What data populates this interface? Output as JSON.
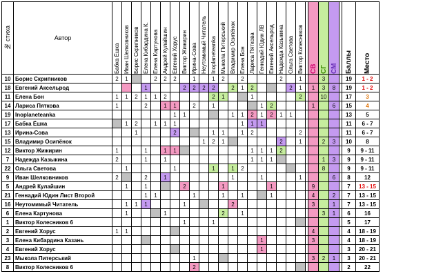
{
  "header": {
    "num_label": "№ стиха",
    "author_label": "Автор",
    "judges": [
      "Бабка Ёшка",
      "Иван Шелковников",
      "Борис Скрипников",
      "Елена Кибардина К.",
      "Елена Картунова",
      "Андрей Кулайшин",
      "Евгений Хорус",
      "Виктор Жижирин",
      "Ирина-Сова",
      "Неутомимый Читатель",
      "Inoplaneteanka",
      "Мыкола Питерський",
      "Владимир Осипёнок",
      "Елена Бон",
      "Лариса Пяткова",
      "Геннадий Юдин ЛВ",
      "Евгений Аксельрод",
      "Надежда Казыкина",
      "Ольга Светова",
      "Виктор Колесников"
    ],
    "sv_label": "СВ",
    "sg_label": "СГ",
    "sm_label": "СМ",
    "score_label": "Баллы",
    "place_label": "Место"
  },
  "rows": [
    {
      "num": "10",
      "name": "Борис Скрипников",
      "v": [
        "2",
        "1",
        "",
        "",
        "2",
        "2",
        "2",
        "",
        "1",
        "",
        "1",
        "2",
        "",
        "2",
        "",
        "",
        "",
        "2",
        "",
        "1"
      ],
      "c": [
        "",
        "",
        "c-grey",
        "",
        "",
        "",
        "",
        "",
        "",
        "",
        "",
        "",
        "",
        "",
        "",
        "",
        "",
        "",
        "",
        ""
      ],
      "sv": "",
      "sg": "3",
      "sm": "",
      "score": "19",
      "place": "1 - 2",
      "pc": "place-red"
    },
    {
      "num": "18",
      "name": "Евгений Аксельрод",
      "v": [
        "",
        "",
        "",
        "1",
        "",
        "",
        "",
        "2",
        "2",
        "2",
        "2",
        "",
        "2",
        "1",
        "2",
        "",
        "",
        "",
        "2",
        "1"
      ],
      "c": [
        "",
        "c-pink",
        "",
        "c-purple",
        "",
        "",
        "",
        "c-purple",
        "c-purple",
        "c-purple",
        "c-purple",
        "",
        "c-green",
        "",
        "c-green",
        "",
        "c-grey",
        "",
        "c-purple",
        ""
      ],
      "sv": "1",
      "sg": "3",
      "sm": "8",
      "score": "19",
      "place": "1 - 2",
      "pc": "place-red"
    },
    {
      "num": "11",
      "name": "Елена Бон",
      "v": [
        "1",
        "1",
        "2",
        "1",
        "1",
        "2",
        "",
        "",
        "",
        "",
        "2",
        "1",
        "",
        "",
        "1",
        "",
        "",
        "",
        "",
        "2"
      ],
      "c": [
        "",
        "",
        "",
        "",
        "",
        "",
        "",
        "",
        "",
        "",
        "c-green",
        "c-green",
        "",
        "c-grey",
        "",
        "",
        "",
        "",
        "",
        "c-green"
      ],
      "sv": "",
      "sg": "10",
      "sm": "",
      "score": "17",
      "place": "3",
      "pc": "place-orange"
    },
    {
      "num": "14",
      "name": "Лариса Пяткова",
      "v": [
        "1",
        "",
        "",
        "2",
        "",
        "1",
        "1",
        "",
        "2",
        "",
        "1",
        "",
        "",
        "",
        "",
        "1",
        "2",
        "",
        "",
        ""
      ],
      "c": [
        "",
        "",
        "",
        "",
        "",
        "c-pink",
        "c-pink",
        "",
        "",
        "",
        "",
        "",
        "",
        "",
        "c-grey",
        "",
        "c-green",
        "",
        "",
        ""
      ],
      "sv": "1",
      "sg": "",
      "sm": "6",
      "score": "15",
      "place": "4",
      "pc": "place-orange"
    },
    {
      "num": "19",
      "name": "Inoplaneteanka",
      "v": [
        "",
        "",
        "",
        "",
        "",
        "",
        "1",
        "1",
        "",
        "",
        "",
        "",
        "1",
        "1",
        "2",
        "1",
        "2",
        "1",
        "1",
        ""
      ],
      "c": [
        "",
        "",
        "",
        "",
        "",
        "",
        "",
        "",
        "",
        "",
        "c-grey",
        "",
        "",
        "",
        "c-pink",
        "",
        "c-pink",
        "",
        "",
        ""
      ],
      "sv": "",
      "sg": "",
      "sm": "",
      "score": "13",
      "place": "5",
      "pc": ""
    },
    {
      "num": "17",
      "name": "Бабка Ёшка",
      "v": [
        "",
        "1",
        "2",
        "",
        "1",
        "1",
        "1",
        "",
        "",
        "",
        "",
        "",
        "",
        "1",
        "1",
        "1",
        "",
        "",
        "",
        ""
      ],
      "c": [
        "c-grey",
        "",
        "",
        "",
        "",
        "",
        "",
        "",
        "",
        "",
        "",
        "",
        "",
        "",
        "c-purple",
        "c-purple",
        "",
        "",
        "",
        ""
      ],
      "sv": "",
      "sg": "",
      "sm": "",
      "score": "11",
      "place": "6 - 7",
      "pc": ""
    },
    {
      "num": "13",
      "name": "Ирина-Сова",
      "v": [
        "",
        "",
        "1",
        "",
        "",
        "",
        "2",
        "",
        "",
        "",
        "1",
        "1",
        "",
        "1",
        "2",
        "",
        "",
        "",
        "",
        "2"
      ],
      "c": [
        "",
        "",
        "",
        "",
        "",
        "",
        "c-purple",
        "",
        "c-grey",
        "",
        "",
        "",
        "",
        "",
        "",
        "",
        "",
        "",
        "",
        ""
      ],
      "sv": "",
      "sg": "",
      "sm": "",
      "score": "11",
      "place": "6 - 7",
      "pc": ""
    },
    {
      "num": "15",
      "name": "Владимир Осипёнок",
      "v": [
        "",
        "",
        "",
        "",
        "",
        "",
        "",
        "",
        "",
        "1",
        "2",
        "1",
        "",
        "",
        "",
        "",
        "",
        "2",
        "",
        "1"
      ],
      "c": [
        "",
        "",
        "",
        "",
        "",
        "",
        "",
        "",
        "",
        "",
        "",
        "",
        "c-grey",
        "",
        "",
        "",
        "",
        "c-purple",
        "",
        ""
      ],
      "sv": "",
      "sg": "2",
      "sm": "3",
      "score": "10",
      "place": "8",
      "pc": ""
    },
    {
      "num": "12",
      "name": "Виктор Жижирин",
      "v": [
        "1",
        "",
        "",
        "1",
        "",
        "1",
        "1",
        "",
        "",
        "",
        "",
        "",
        "",
        "",
        "1",
        "1",
        "1",
        "2",
        "",
        ""
      ],
      "c": [
        "",
        "",
        "",
        "",
        "",
        "c-pink",
        "c-pink",
        "c-grey",
        "",
        "",
        "",
        "",
        "",
        "",
        "",
        "",
        "",
        "c-green",
        "",
        ""
      ],
      "sv": "",
      "sg": "",
      "sm": "",
      "score": "9",
      "place": "9 - 11",
      "pc": ""
    },
    {
      "num": "7",
      "name": "Надежда Казыкина",
      "v": [
        "2",
        "",
        "",
        "1",
        "",
        "1",
        "",
        "",
        "",
        "",
        "",
        "",
        "",
        "",
        "1",
        "1",
        "1",
        "",
        "",
        ""
      ],
      "c": [
        "",
        "",
        "",
        "",
        "",
        "",
        "",
        "",
        "",
        "",
        "",
        "",
        "",
        "",
        "",
        "",
        "",
        "c-grey",
        "",
        ""
      ],
      "sv": "",
      "sg": "1",
      "sm": "3",
      "score": "9",
      "place": "9 - 11",
      "pc": ""
    },
    {
      "num": "22",
      "name": "Ольга Светова",
      "v": [
        "",
        "1",
        "",
        "",
        "",
        "",
        "1",
        "",
        "",
        "",
        "1",
        "",
        "1",
        "2",
        "",
        "",
        "",
        "",
        "",
        ""
      ],
      "c": [
        "",
        "",
        "",
        "",
        "",
        "",
        "",
        "",
        "",
        "",
        "c-green",
        "",
        "c-green",
        "",
        "",
        "",
        "",
        "",
        "c-grey",
        ""
      ],
      "sv": "",
      "sg": "8",
      "sm": "",
      "score": "9",
      "place": "9 - 11",
      "pc": ""
    },
    {
      "num": "9",
      "name": "Иван Шелковников",
      "v": [
        "2",
        "",
        "",
        "2",
        "",
        "1",
        "",
        "",
        "",
        "",
        "",
        "",
        "1",
        "",
        "",
        "1",
        "",
        "",
        "",
        "1"
      ],
      "c": [
        "",
        "c-grey",
        "",
        "",
        "",
        "c-purple",
        "",
        "",
        "",
        "",
        "",
        "",
        "",
        "",
        "",
        "",
        "",
        "",
        "",
        ""
      ],
      "sv": "",
      "sg": "",
      "sm": "6",
      "score": "8",
      "place": "12",
      "pc": ""
    },
    {
      "num": "5",
      "name": "Андрей Кулайшин",
      "v": [
        "",
        "1",
        "",
        "1",
        "",
        "",
        "",
        "2",
        "",
        "",
        "",
        "1",
        "",
        "",
        "",
        "",
        "1",
        "",
        "",
        ""
      ],
      "c": [
        "",
        "",
        "",
        "",
        "",
        "c-grey",
        "",
        "c-pink",
        "",
        "",
        "",
        "c-pink",
        "",
        "",
        "",
        "",
        "c-pink",
        "",
        "",
        ""
      ],
      "sv": "9",
      "sg": "",
      "sm": "",
      "score": "7",
      "place": "13 - 15",
      "pc": "place-red"
    },
    {
      "num": "21",
      "name": "Геннадий Юдин Лист Второй",
      "v": [
        "",
        "",
        "",
        "1",
        "1",
        "",
        "",
        "",
        "1",
        "",
        "",
        "1",
        "",
        "1",
        "",
        "",
        "1",
        "",
        "",
        ""
      ],
      "c": [
        "",
        "",
        "",
        "",
        "",
        "",
        "",
        "",
        "",
        "",
        "",
        "",
        "",
        "",
        "",
        "c-grey",
        "",
        "",
        "",
        ""
      ],
      "sv": "4",
      "sg": "",
      "sm": "2",
      "score": "7",
      "place": "13 - 15",
      "pc": ""
    },
    {
      "num": "16",
      "name": "Неутомимый Читатель",
      "v": [
        "",
        "1",
        "1",
        "1",
        "",
        "",
        "",
        "1",
        "",
        "",
        "",
        "",
        "2",
        "",
        "",
        "",
        "",
        "",
        "",
        ""
      ],
      "c": [
        "",
        "",
        "",
        "c-purple",
        "",
        "",
        "",
        "",
        "",
        "c-grey",
        "",
        "",
        "c-pink",
        "",
        "",
        "",
        "",
        "",
        "",
        ""
      ],
      "sv": "3",
      "sg": "",
      "sm": "1",
      "score": "7",
      "place": "13 - 15",
      "pc": ""
    },
    {
      "num": "6",
      "name": "Елена Картунова",
      "v": [
        "",
        "1",
        "",
        "",
        "",
        "1",
        "",
        "",
        "",
        "",
        "",
        "2",
        "",
        "1",
        "",
        "",
        "",
        "",
        "",
        ""
      ],
      "c": [
        "",
        "",
        "",
        "",
        "c-grey",
        "",
        "",
        "",
        "",
        "",
        "",
        "c-green",
        "",
        "",
        "",
        "",
        "",
        "",
        "",
        ""
      ],
      "sv": "",
      "sg": "3",
      "sm": "1",
      "score": "6",
      "place": "16",
      "pc": ""
    },
    {
      "num": "1",
      "name": "Виктор Колесников 6",
      "v": [
        "",
        "",
        "",
        "",
        "",
        "",
        "",
        "1",
        "",
        "",
        "1",
        "",
        "",
        "",
        "",
        "",
        "",
        "",
        "",
        ""
      ],
      "c": [
        "",
        "",
        "",
        "",
        "",
        "",
        "",
        "",
        "",
        "",
        "",
        "",
        "",
        "",
        "",
        "",
        "",
        "",
        "",
        "c-grey"
      ],
      "sv": "",
      "sg": "",
      "sm": "",
      "score": "5",
      "place": "17",
      "pc": ""
    },
    {
      "num": "2",
      "name": "Евгений Хорус",
      "v": [
        "1",
        "1",
        "",
        "",
        "",
        "",
        "",
        "",
        "",
        "",
        "",
        "",
        "",
        "",
        "",
        "",
        "",
        "",
        "",
        ""
      ],
      "c": [
        "",
        "",
        "",
        "",
        "",
        "",
        "c-grey",
        "",
        "",
        "",
        "",
        "",
        "",
        "",
        "",
        "",
        "",
        "",
        "",
        ""
      ],
      "sv": "4",
      "sg": "",
      "sm": "",
      "score": "4",
      "place": "18 - 19",
      "pc": ""
    },
    {
      "num": "3",
      "name": "Елена Кибардина Казань",
      "v": [
        "",
        "",
        "",
        "",
        "",
        "",
        "",
        "",
        "",
        "",
        "",
        "",
        "",
        "",
        "",
        "1",
        "",
        "",
        "",
        ""
      ],
      "c": [
        "",
        "",
        "",
        "c-grey",
        "",
        "",
        "",
        "",
        "",
        "",
        "",
        "",
        "",
        "",
        "",
        "c-pink",
        "",
        "",
        "",
        ""
      ],
      "sv": "3",
      "sg": "",
      "sm": "",
      "score": "4",
      "place": "18 - 19",
      "pc": ""
    },
    {
      "num": "4",
      "name": "Евгений Хорус",
      "v": [
        "",
        "",
        "",
        "",
        "",
        "",
        "",
        "",
        "",
        "",
        "",
        "",
        "",
        "",
        "",
        "1",
        "",
        "",
        "",
        ""
      ],
      "c": [
        "",
        "",
        "",
        "",
        "",
        "",
        "c-grey",
        "",
        "",
        "",
        "",
        "",
        "",
        "",
        "",
        "c-pink",
        "",
        "",
        "",
        ""
      ],
      "sv": "",
      "sg": "",
      "sm": "",
      "score": "3",
      "place": "20 - 21",
      "pc": ""
    },
    {
      "num": "23",
      "name": "Мыкола Питерський",
      "v": [
        "",
        "",
        "",
        "",
        "",
        "",
        "",
        "",
        "1",
        "",
        "",
        "",
        "",
        "",
        "",
        "",
        "",
        "",
        "",
        ""
      ],
      "c": [
        "",
        "",
        "",
        "",
        "",
        "",
        "",
        "",
        "",
        "",
        "",
        "c-grey",
        "",
        "",
        "",
        "",
        "",
        "",
        "",
        ""
      ],
      "sv": "3",
      "sg": "2",
      "sm": "1",
      "score": "3",
      "place": "20 - 21",
      "pc": ""
    },
    {
      "num": "8",
      "name": "Виктор Колесников 6",
      "v": [
        "",
        "",
        "",
        "",
        "",
        "",
        "",
        "",
        "2",
        "",
        "",
        "",
        "",
        "",
        "",
        "",
        "",
        "",
        "",
        ""
      ],
      "c": [
        "",
        "",
        "",
        "",
        "",
        "",
        "",
        "",
        "c-pink",
        "",
        "",
        "",
        "",
        "",
        "",
        "",
        "",
        "",
        "",
        "c-grey"
      ],
      "sv": "",
      "sg": "",
      "sm": "",
      "score": "2",
      "place": "22",
      "pc": ""
    }
  ]
}
